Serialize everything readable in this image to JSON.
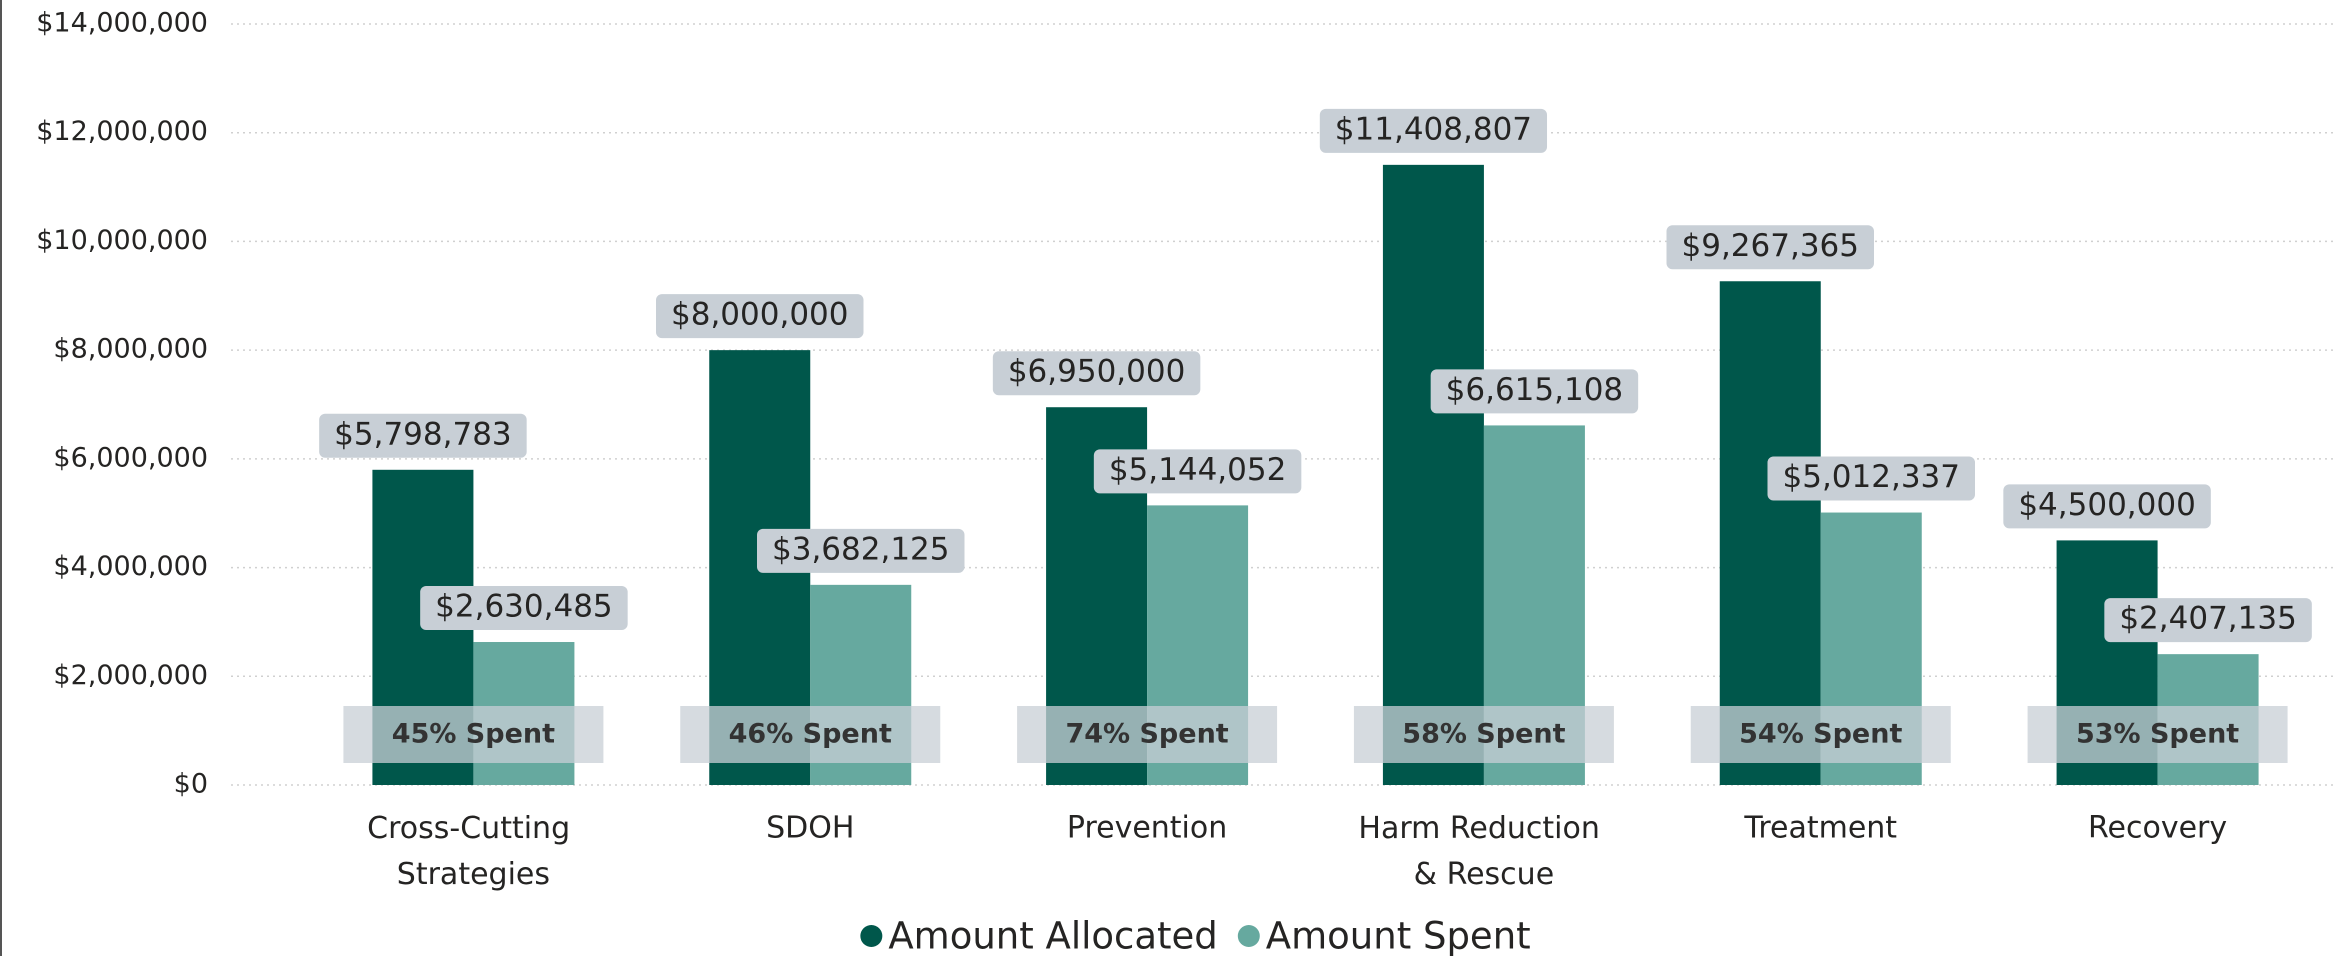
{
  "chart_data": {
    "type": "bar",
    "categories": [
      "Cross-Cutting Strategies",
      "SDOH",
      "Prevention",
      "Harm Reduction & Rescue",
      "Treatment",
      "Recovery"
    ],
    "series": [
      {
        "name": "Amount Allocated",
        "color": "#00574b",
        "values": [
          5798783,
          8000000,
          6950000,
          11408807,
          9267365,
          4500000
        ],
        "value_labels": [
          "$5,798,783",
          "$8,000,000",
          "$6,950,000",
          "$11,408,807",
          "$9,267,365",
          "$4,500,000"
        ]
      },
      {
        "name": "Amount Spent",
        "color": "#66a99f",
        "values": [
          2630485,
          3682125,
          5144052,
          6615108,
          5012337,
          2407135
        ],
        "value_labels": [
          "$2,630,485",
          "$3,682,125",
          "$5,144,052",
          "$6,615,108",
          "$5,012,337",
          "$2,407,135"
        ]
      }
    ],
    "annotations": [
      "45% Spent",
      "46% Spent",
      "74% Spent",
      "58% Spent",
      "54% Spent",
      "53% Spent"
    ],
    "ylim": [
      0,
      14000000
    ],
    "yticks": [
      {
        "value": 0,
        "label": "$0"
      },
      {
        "value": 2000000,
        "label": "$2,000,000"
      },
      {
        "value": 4000000,
        "label": "$4,000,000"
      },
      {
        "value": 6000000,
        "label": "$6,000,000"
      },
      {
        "value": 8000000,
        "label": "$8,000,000"
      },
      {
        "value": 10000000,
        "label": "$10,000,000"
      },
      {
        "value": 12000000,
        "label": "$12,000,000"
      },
      {
        "value": 14000000,
        "label": "$14,000,000"
      }
    ],
    "grid": true,
    "legend": "bottom"
  }
}
